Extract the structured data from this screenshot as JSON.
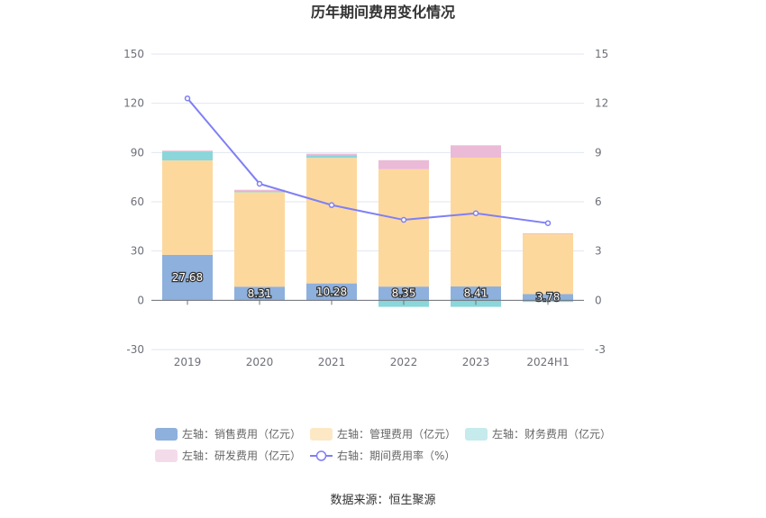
{
  "title": "历年期间费用变化情况",
  "source": "数据来源：恒生聚源",
  "chart_data": {
    "type": "bar",
    "stacked": true,
    "categories": [
      "2019",
      "2020",
      "2021",
      "2022",
      "2023",
      "2024H1"
    ],
    "left_axis": {
      "ylim": [
        -30,
        150
      ],
      "ticks": [
        -30,
        0,
        30,
        60,
        90,
        120,
        150
      ]
    },
    "right_axis": {
      "ylim": [
        -3,
        15
      ],
      "ticks": [
        -3,
        0,
        3,
        6,
        9,
        12,
        15
      ]
    },
    "grid": true,
    "legend_position": "bottom",
    "series": [
      {
        "name": "左轴：销售费用（亿元）",
        "axis": "left",
        "type": "bar",
        "color": "#8eb0dd",
        "values": [
          27.68,
          8.31,
          10.28,
          8.35,
          8.41,
          3.78
        ],
        "labels": [
          "27.68",
          "8.31",
          "10.28",
          "8.35",
          "8.41",
          "3.78"
        ]
      },
      {
        "name": "左轴：管理费用（亿元）",
        "axis": "left",
        "type": "bar",
        "color": "#fdd89d",
        "legend_color": "#fde8c6",
        "values": [
          57.5,
          57.5,
          76.5,
          71.5,
          78.5,
          36.5
        ]
      },
      {
        "name": "左轴：财务费用（亿元）",
        "axis": "left",
        "type": "bar",
        "color": "#8ad6da",
        "legend_color": "#c5ebec",
        "values": [
          5.5,
          0.5,
          1.5,
          -4.0,
          -4.0,
          -1.0
        ]
      },
      {
        "name": "左轴：研发费用（亿元）",
        "axis": "left",
        "type": "bar",
        "color": "#ebbad7",
        "legend_color": "#f4dbea",
        "values": [
          0.5,
          1.0,
          1.0,
          5.5,
          7.5,
          0.5
        ]
      },
      {
        "name": "右轴：期间费用率（%）",
        "axis": "right",
        "type": "line",
        "color": "#7f7ff5",
        "values": [
          12.3,
          7.1,
          5.8,
          4.9,
          5.3,
          4.7
        ]
      }
    ]
  }
}
